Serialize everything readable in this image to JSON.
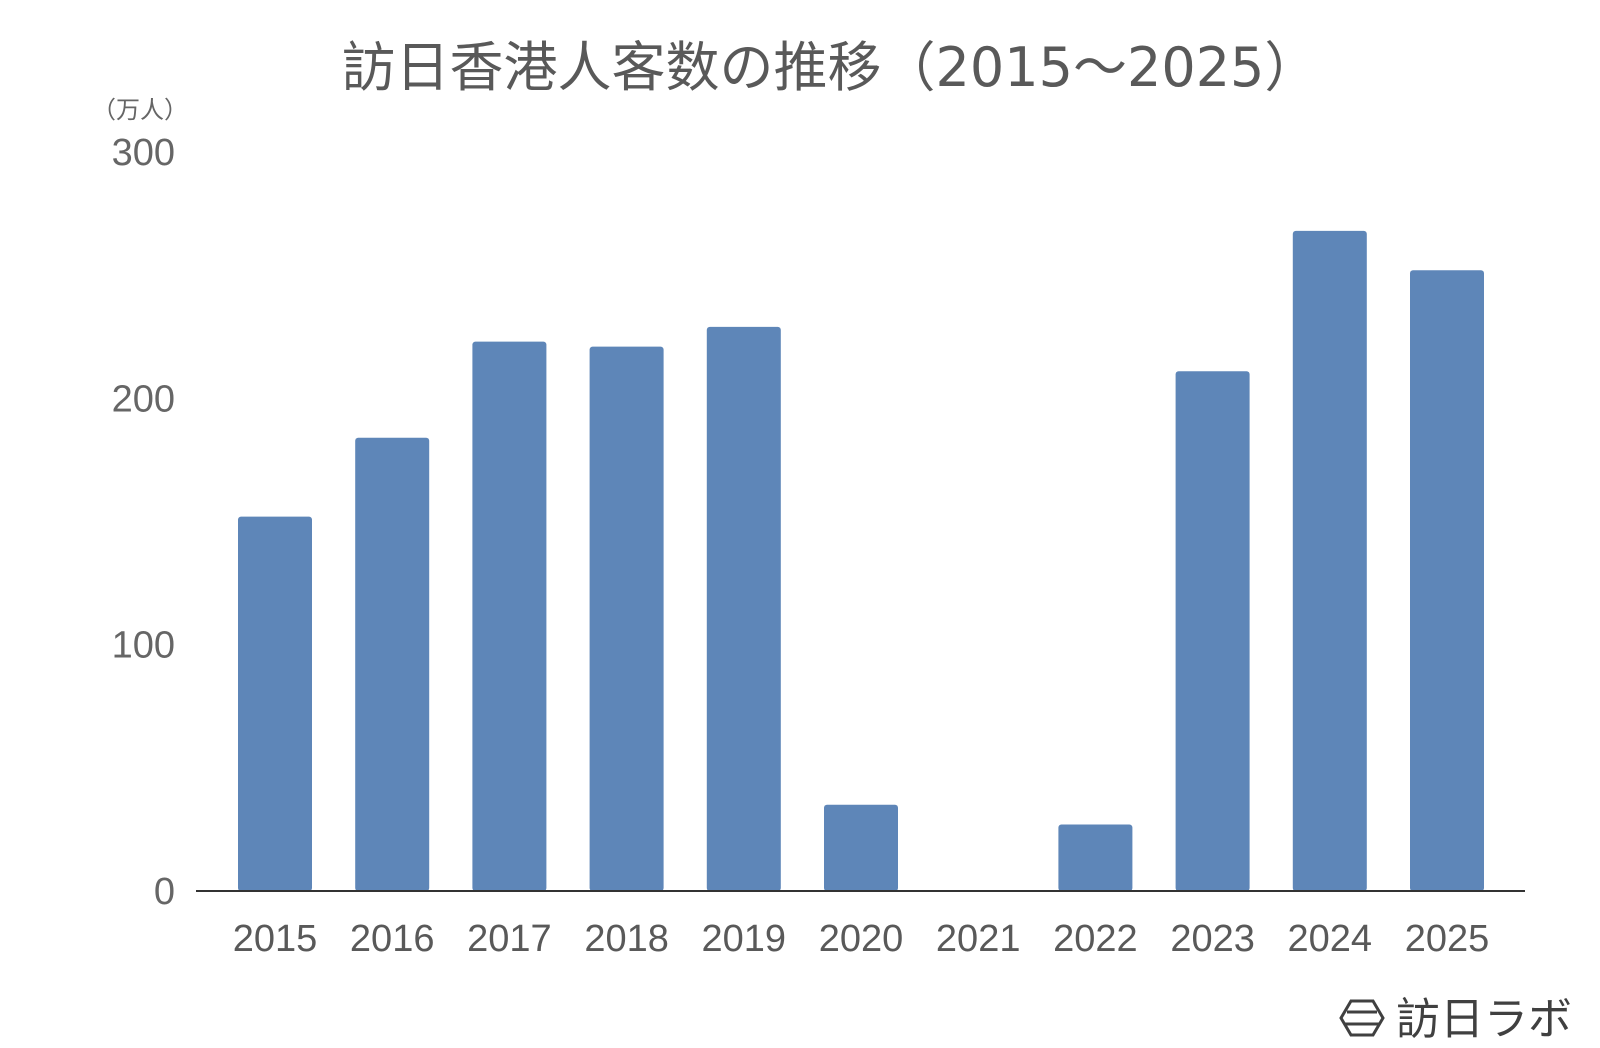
{
  "colors": {
    "bar": "#5e86b8",
    "axis": "#333333",
    "text": "#595959",
    "brand": "#404040"
  },
  "brand": {
    "icon": "hexagon-logo-icon",
    "name": "訪日ラボ"
  },
  "chart_data": {
    "type": "bar",
    "title": "訪日香港人客数の推移（2015〜2025）",
    "y_unit": "（万人）",
    "xlabel": "",
    "ylabel": "",
    "ylim": [
      0,
      300
    ],
    "y_ticks": [
      0,
      100,
      200,
      300
    ],
    "grid": false,
    "legend": "none",
    "categories": [
      "2015",
      "2016",
      "2017",
      "2018",
      "2019",
      "2020",
      "2021",
      "2022",
      "2023",
      "2024",
      "2025"
    ],
    "values": [
      152,
      184,
      223,
      221,
      229,
      35,
      0,
      27,
      211,
      268,
      252
    ]
  }
}
